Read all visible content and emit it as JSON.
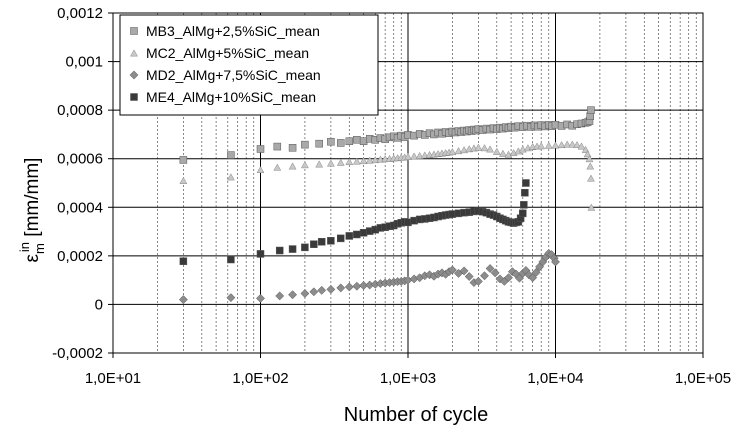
{
  "chart_data": {
    "type": "scatter",
    "xscale": "log",
    "xlim": [
      10,
      100000
    ],
    "ylim": [
      -0.0002,
      0.0012
    ],
    "xlabel": "Number of cycle",
    "ylabel": {
      "base": "ε",
      "sup": "in",
      "sub": "m",
      "unit": " [mm/mm]"
    },
    "x_ticks": [
      "1,0E+01",
      "1,0E+02",
      "1,0E+03",
      "1,0E+04",
      "1,0E+05"
    ],
    "y_ticks": [
      "-0,0002",
      "0",
      "0,0002",
      "0,0004",
      "0,0006",
      "0,0008",
      "0,001",
      "0,0012"
    ],
    "grid": true,
    "legend_position": "top-left",
    "series": [
      {
        "name": "MB3_AlMg+2,5%SiC_mean",
        "marker": "square",
        "color": "#a9a9a9",
        "x": [
          30,
          63,
          100,
          130,
          165,
          200,
          250,
          300,
          350,
          400,
          450,
          500,
          550,
          600,
          650,
          700,
          750,
          800,
          850,
          900,
          950,
          1000,
          1100,
          1200,
          1300,
          1400,
          1500,
          1600,
          1700,
          1800,
          1900,
          2000,
          2100,
          2200,
          2300,
          2400,
          2500,
          2600,
          2700,
          2800,
          2900,
          3000,
          3200,
          3400,
          3600,
          3800,
          4000,
          4200,
          4400,
          4600,
          4800,
          5000,
          5300,
          5600,
          6000,
          6400,
          6800,
          7200,
          7600,
          8000,
          8500,
          9000,
          9500,
          10000,
          11000,
          12000,
          13000,
          14000,
          15000,
          16000,
          16500,
          17000,
          17200,
          17400
        ],
        "y": [
          0.000595,
          0.000615,
          0.00064,
          0.00065,
          0.000645,
          0.000658,
          0.000662,
          0.00067,
          0.000665,
          0.000672,
          0.000678,
          0.000672,
          0.000682,
          0.000678,
          0.000685,
          0.00068,
          0.000688,
          0.000692,
          0.000686,
          0.000695,
          0.000689,
          0.000698,
          0.000695,
          0.000702,
          0.000698,
          0.000705,
          0.0007,
          0.000708,
          0.000703,
          0.00071,
          0.000705,
          0.000712,
          0.000708,
          0.000714,
          0.00071,
          0.000716,
          0.000712,
          0.000718,
          0.000714,
          0.00072,
          0.000716,
          0.000722,
          0.000718,
          0.000724,
          0.00072,
          0.000726,
          0.000722,
          0.000728,
          0.000724,
          0.00073,
          0.000726,
          0.000732,
          0.000728,
          0.000734,
          0.00073,
          0.000736,
          0.000731,
          0.000737,
          0.000732,
          0.000738,
          0.000733,
          0.000739,
          0.000734,
          0.00074,
          0.000735,
          0.000741,
          0.000736,
          0.000742,
          0.000745,
          0.000748,
          0.00075,
          0.000755,
          0.000775,
          0.0008
        ]
      },
      {
        "name": "MC2_AlMg+5%SiC_mean",
        "marker": "triangle",
        "color": "#c8c8c8",
        "x": [
          30,
          63,
          100,
          130,
          165,
          200,
          250,
          300,
          350,
          400,
          450,
          500,
          550,
          600,
          650,
          700,
          750,
          800,
          850,
          900,
          950,
          1000,
          1100,
          1200,
          1300,
          1400,
          1500,
          1600,
          1700,
          1800,
          1900,
          2000,
          2200,
          2400,
          2600,
          2800,
          3000,
          3300,
          3600,
          4000,
          4400,
          4800,
          5200,
          5600,
          6000,
          6500,
          7000,
          7500,
          8000,
          9000,
          10000,
          11000,
          12000,
          13000,
          14000,
          15000,
          16000,
          16500,
          17000,
          17200,
          17400,
          17500
        ],
        "y": [
          0.00051,
          0.000525,
          0.000555,
          0.000565,
          0.00057,
          0.000575,
          0.000578,
          0.000582,
          0.000585,
          0.000588,
          0.00059,
          0.000592,
          0.000594,
          0.000596,
          0.000598,
          0.0006,
          0.000601,
          0.000603,
          0.000604,
          0.000606,
          0.000607,
          0.000609,
          0.000611,
          0.000613,
          0.000615,
          0.000617,
          0.000619,
          0.000621,
          0.000623,
          0.000625,
          0.000627,
          0.000629,
          0.000633,
          0.000637,
          0.000641,
          0.000644,
          0.000647,
          0.000645,
          0.00064,
          0.00063,
          0.000622,
          0.000618,
          0.000625,
          0.000632,
          0.00064,
          0.000645,
          0.00065,
          0.000652,
          0.000653,
          0.000655,
          0.000656,
          0.000658,
          0.00066,
          0.00066,
          0.000658,
          0.000652,
          0.000638,
          0.00062,
          0.0006,
          0.00057,
          0.00052,
          0.0004
        ]
      },
      {
        "name": "MD2_AlMg+7,5%SiC_mean",
        "marker": "diamond",
        "color": "#8c8c8c",
        "x": [
          30,
          63,
          100,
          135,
          165,
          200,
          230,
          260,
          300,
          350,
          400,
          450,
          500,
          550,
          600,
          650,
          700,
          750,
          800,
          850,
          900,
          950,
          1000,
          1100,
          1200,
          1300,
          1400,
          1500,
          1600,
          1700,
          1800,
          1900,
          2000,
          2200,
          2400,
          2600,
          2800,
          3000,
          3300,
          3600,
          3900,
          4200,
          4500,
          4800,
          5100,
          5400,
          5700,
          6000,
          6300,
          6600,
          7000,
          7400,
          7800,
          8200,
          8600,
          9000,
          9400,
          9800,
          10000
        ],
        "y": [
          2e-05,
          2.8e-05,
          2.5e-05,
          3.5e-05,
          4e-05,
          4.5e-05,
          5.2e-05,
          5.8e-05,
          6.2e-05,
          6.8e-05,
          7.2e-05,
          7.5e-05,
          7.8e-05,
          8e-05,
          8.3e-05,
          8.6e-05,
          8.8e-05,
          9e-05,
          9.2e-05,
          9.4e-05,
          9.5e-05,
          9.7e-05,
          0.0001,
          0.000105,
          0.00011,
          0.000118,
          0.000122,
          0.000116,
          0.000125,
          0.00013,
          0.000124,
          0.000135,
          0.000142,
          0.000128,
          0.000138,
          0.000115,
          9e-05,
          9.5e-05,
          0.000118,
          0.000148,
          0.00013,
          0.000105,
          9.5e-05,
          0.00011,
          0.000135,
          0.000125,
          0.000108,
          0.000128,
          0.00014,
          0.000122,
          0.00011,
          0.000132,
          0.000155,
          0.000175,
          0.000195,
          0.00021,
          0.000205,
          0.00019,
          0.000175
        ]
      },
      {
        "name": "ME4_AlMg+10%SiC_mean",
        "marker": "square",
        "color": "#3a3a3a",
        "x": [
          30,
          63,
          100,
          135,
          165,
          200,
          230,
          260,
          300,
          350,
          400,
          450,
          500,
          550,
          600,
          650,
          700,
          750,
          800,
          850,
          900,
          950,
          1000,
          1100,
          1200,
          1300,
          1400,
          1500,
          1600,
          1700,
          1800,
          1900,
          2000,
          2200,
          2400,
          2600,
          2800,
          3000,
          3200,
          3400,
          3600,
          3800,
          4000,
          4200,
          4400,
          4600,
          4800,
          5000,
          5200,
          5400,
          5600,
          5800,
          6000,
          6100,
          6200,
          6300
        ],
        "y": [
          0.000178,
          0.000185,
          0.000208,
          0.000222,
          0.000228,
          0.000235,
          0.000248,
          0.000258,
          0.000262,
          0.000272,
          0.000282,
          0.000288,
          0.000295,
          0.000302,
          0.000308,
          0.000315,
          0.000318,
          0.000322,
          0.000325,
          0.000332,
          0.000336,
          0.00034,
          0.000338,
          0.000345,
          0.00035,
          0.000352,
          0.000355,
          0.000358,
          0.000362,
          0.000365,
          0.000368,
          0.00037,
          0.000372,
          0.000375,
          0.000378,
          0.00038,
          0.000383,
          0.000385,
          0.000382,
          0.000378,
          0.000372,
          0.000368,
          0.000362,
          0.000355,
          0.00035,
          0.000345,
          0.00034,
          0.000338,
          0.000335,
          0.000338,
          0.00034,
          0.000355,
          0.000375,
          0.00041,
          0.00046,
          0.0005
        ]
      }
    ]
  }
}
